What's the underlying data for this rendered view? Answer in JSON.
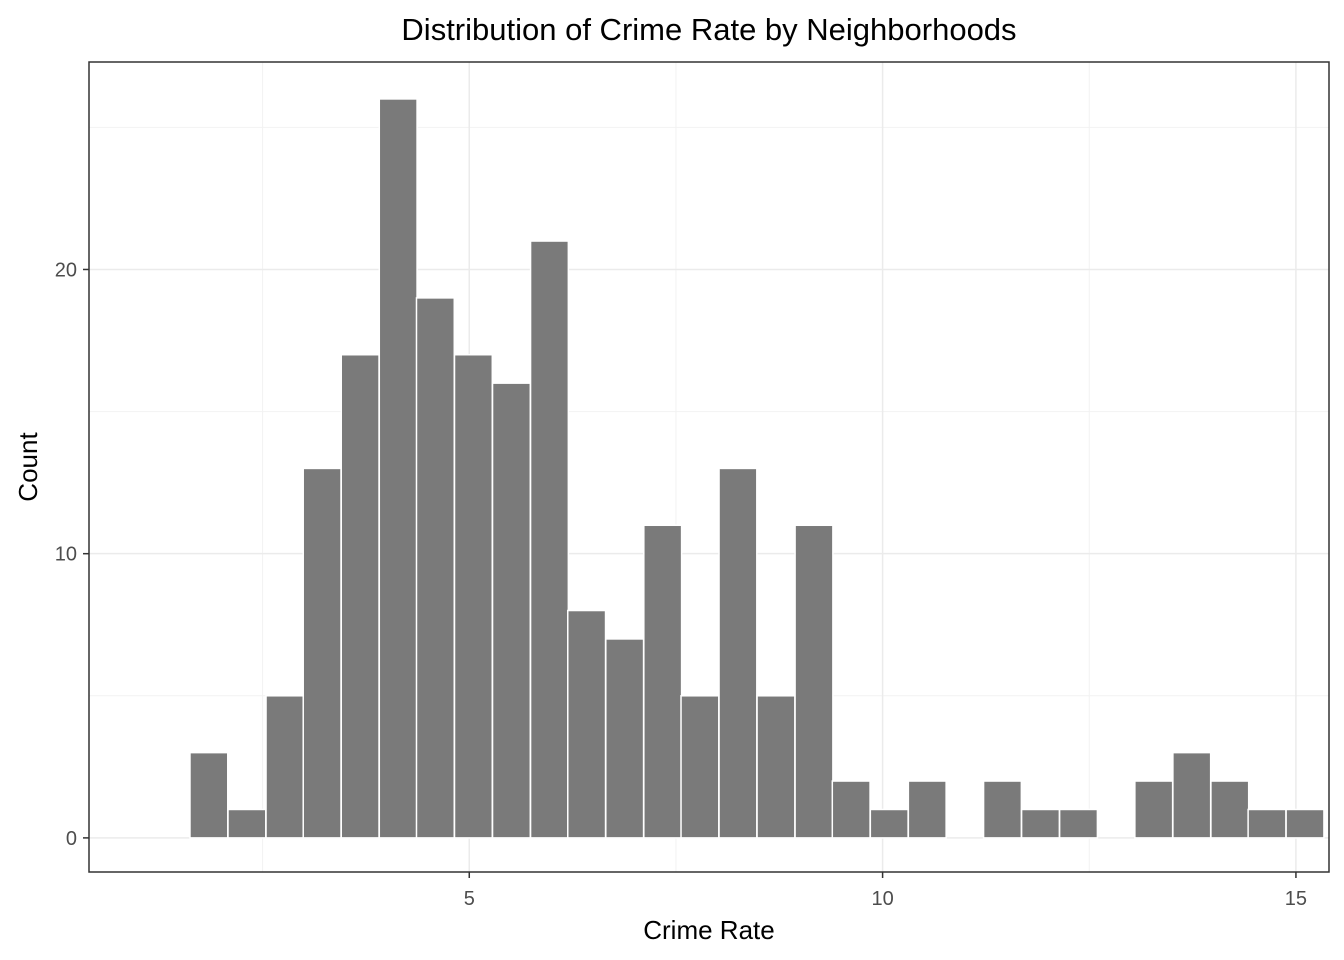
{
  "chart_data": {
    "type": "bar",
    "title": "Distribution of Crime Rate by Neighborhoods",
    "xlabel": "Crime Rate",
    "ylabel": "Count",
    "xlim": [
      0.4,
      15.4
    ],
    "ylim": [
      -1.2,
      27.3
    ],
    "x_ticks": [
      5,
      10,
      15
    ],
    "y_ticks": [
      0,
      10,
      20
    ],
    "grid": true,
    "bin_width": 0.457,
    "bar_color": "#7a7a7a",
    "bar_edge_color": "#ffffff",
    "bins": [
      {
        "x": 1.85,
        "count": 3
      },
      {
        "x": 2.31,
        "count": 1
      },
      {
        "x": 2.77,
        "count": 5
      },
      {
        "x": 3.22,
        "count": 13
      },
      {
        "x": 3.68,
        "count": 17
      },
      {
        "x": 4.14,
        "count": 26
      },
      {
        "x": 4.59,
        "count": 19
      },
      {
        "x": 5.05,
        "count": 17
      },
      {
        "x": 5.51,
        "count": 16
      },
      {
        "x": 5.97,
        "count": 21
      },
      {
        "x": 6.42,
        "count": 8
      },
      {
        "x": 6.88,
        "count": 7
      },
      {
        "x": 7.34,
        "count": 11
      },
      {
        "x": 7.79,
        "count": 5
      },
      {
        "x": 8.25,
        "count": 13
      },
      {
        "x": 8.71,
        "count": 5
      },
      {
        "x": 9.17,
        "count": 11
      },
      {
        "x": 9.62,
        "count": 2
      },
      {
        "x": 10.08,
        "count": 1
      },
      {
        "x": 10.54,
        "count": 2
      },
      {
        "x": 11.0,
        "count": 0
      },
      {
        "x": 11.45,
        "count": 2
      },
      {
        "x": 11.91,
        "count": 1
      },
      {
        "x": 12.37,
        "count": 1
      },
      {
        "x": 12.82,
        "count": 0
      },
      {
        "x": 13.28,
        "count": 2
      },
      {
        "x": 13.74,
        "count": 3
      },
      {
        "x": 14.2,
        "count": 2
      },
      {
        "x": 14.65,
        "count": 1
      },
      {
        "x": 15.11,
        "count": 1
      }
    ]
  }
}
